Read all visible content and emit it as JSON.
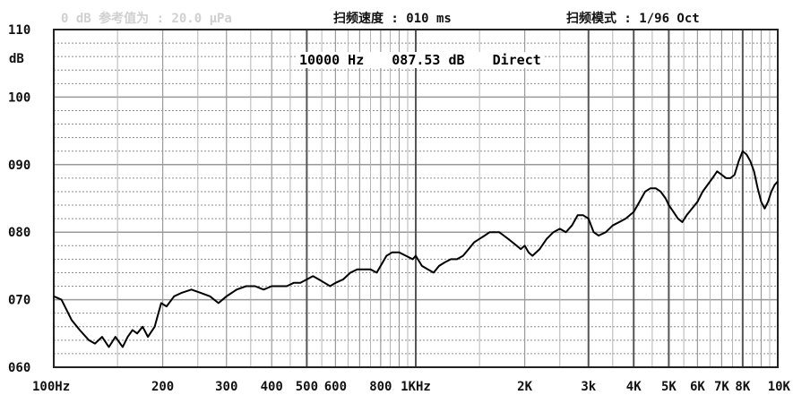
{
  "header": {
    "reference": "0 dB 参考值为 : 20.0 μPa",
    "sweep_speed": "扫频速度 : 010 ms",
    "sweep_mode": "扫频模式 : 1/96 Oct"
  },
  "readout": {
    "frequency": "10000 Hz",
    "level": "087.53 dB",
    "mode": "Direct"
  },
  "colors": {
    "background": "#ffffff",
    "grid_major": "#9a9a9a",
    "grid_minor": "#8c8c8c",
    "trace": "#000000",
    "reference_text": "#d0d0d0"
  },
  "chart_data": {
    "type": "line",
    "xscale": "log",
    "xlim": [
      100,
      10000
    ],
    "ylim": [
      60,
      110
    ],
    "ylabel": "dB",
    "y_ticks": [
      {
        "value": 110,
        "label": "110"
      },
      {
        "value": 100,
        "label": "100"
      },
      {
        "value": 90,
        "label": "090"
      },
      {
        "value": 80,
        "label": "080"
      },
      {
        "value": 70,
        "label": "070"
      },
      {
        "value": 60,
        "label": "060"
      }
    ],
    "x_ticks": [
      {
        "value": 100,
        "label": "100Hz"
      },
      {
        "value": 200,
        "label": "200"
      },
      {
        "value": 300,
        "label": "300"
      },
      {
        "value": 400,
        "label": "400"
      },
      {
        "value": 500,
        "label": "500"
      },
      {
        "value": 600,
        "label": "600"
      },
      {
        "value": 800,
        "label": "800"
      },
      {
        "value": 1000,
        "label": "1KHz"
      },
      {
        "value": 2000,
        "label": "2K"
      },
      {
        "value": 3000,
        "label": "3k"
      },
      {
        "value": 4000,
        "label": "4K"
      },
      {
        "value": 5000,
        "label": "5K"
      },
      {
        "value": 6000,
        "label": "6K"
      },
      {
        "value": 7000,
        "label": "7K"
      },
      {
        "value": 8000,
        "label": "8K"
      },
      {
        "value": 10000,
        "label": "10K"
      }
    ],
    "grid": true,
    "series": [
      {
        "x": [
          100,
          105,
          112,
          118,
          125,
          130,
          136,
          142,
          148,
          155,
          160,
          165,
          170,
          176,
          182,
          190,
          198,
          205,
          215,
          225,
          240,
          255,
          270,
          285,
          300,
          320,
          340,
          360,
          380,
          400,
          420,
          440,
          460,
          480,
          500,
          520,
          540,
          560,
          580,
          600,
          630,
          660,
          690,
          720,
          750,
          780,
          800,
          830,
          860,
          900,
          940,
          980,
          1000,
          1040,
          1080,
          1120,
          1160,
          1200,
          1250,
          1300,
          1350,
          1400,
          1450,
          1500,
          1550,
          1600,
          1650,
          1700,
          1750,
          1800,
          1850,
          1900,
          1950,
          2000,
          2050,
          2100,
          2200,
          2300,
          2400,
          2500,
          2600,
          2700,
          2800,
          2900,
          3000,
          3100,
          3200,
          3350,
          3500,
          3650,
          3800,
          4000,
          4150,
          4300,
          4450,
          4600,
          4750,
          4900,
          5000,
          5150,
          5300,
          5450,
          5600,
          5800,
          6000,
          6200,
          6400,
          6600,
          6800,
          7000,
          7200,
          7400,
          7600,
          7800,
          8000,
          8200,
          8400,
          8600,
          8800,
          9000,
          9200,
          9400,
          9600,
          9800,
          10000
        ],
        "y": [
          70.5,
          70.0,
          67.0,
          65.5,
          64.0,
          63.5,
          64.5,
          63.0,
          64.5,
          63.0,
          64.5,
          65.5,
          65.0,
          66.0,
          64.5,
          66.0,
          69.5,
          69.0,
          70.5,
          71.0,
          71.5,
          71.0,
          70.5,
          69.5,
          70.5,
          71.5,
          72.0,
          72.0,
          71.5,
          72.0,
          72.0,
          72.0,
          72.5,
          72.5,
          73.0,
          73.5,
          73.0,
          72.5,
          72.0,
          72.5,
          73.0,
          74.0,
          74.5,
          74.5,
          74.5,
          74.0,
          75.0,
          76.5,
          77.0,
          77.0,
          76.5,
          76.0,
          76.5,
          75.0,
          74.5,
          74.0,
          75.0,
          75.5,
          76.0,
          76.0,
          76.5,
          77.5,
          78.5,
          79.0,
          79.5,
          80.0,
          80.0,
          80.0,
          79.5,
          79.0,
          78.5,
          78.0,
          77.5,
          78.0,
          77.0,
          76.5,
          77.5,
          79.0,
          80.0,
          80.5,
          80.0,
          81.0,
          82.5,
          82.5,
          82.0,
          80.0,
          79.5,
          80.0,
          81.0,
          81.5,
          82.0,
          83.0,
          84.5,
          86.0,
          86.5,
          86.5,
          86.0,
          85.0,
          84.0,
          83.0,
          82.0,
          81.5,
          82.5,
          83.5,
          84.5,
          86.0,
          87.0,
          88.0,
          89.0,
          88.5,
          88.0,
          88.0,
          88.5,
          90.5,
          92.0,
          91.5,
          90.5,
          89.0,
          86.5,
          84.5,
          83.5,
          84.5,
          86.0,
          87.0,
          87.5
        ]
      }
    ]
  }
}
